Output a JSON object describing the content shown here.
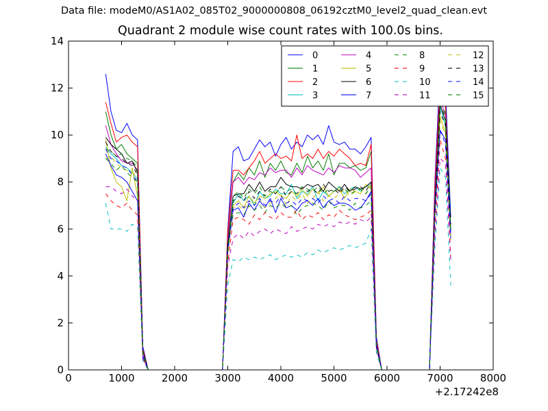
{
  "figure": {
    "suptitle": "Data file: modeM0/AS1A02_085T02_9000000808_06192cztM0_level2_quad_clean.evt",
    "offset_label": "+2.17242e8"
  },
  "chart_data": {
    "type": "line",
    "title": "Quadrant 2 module wise count rates with 100.0s bins.",
    "xlabel": "",
    "ylabel": "",
    "x_offset": 217242000,
    "xlim": [
      0,
      8000
    ],
    "ylim": [
      0,
      14
    ],
    "xticks": [
      0,
      1000,
      2000,
      3000,
      4000,
      5000,
      6000,
      7000,
      8000
    ],
    "yticks": [
      0,
      2,
      4,
      6,
      8,
      10,
      12,
      14
    ],
    "grid": false,
    "legend_placement": "top-right",
    "legend_columns": 4,
    "x": [
      700,
      800,
      900,
      1000,
      1100,
      1200,
      1300,
      1400,
      1500,
      1600,
      1700,
      1800,
      1900,
      2000,
      2100,
      2200,
      2300,
      2400,
      2500,
      2600,
      2700,
      2800,
      2900,
      3000,
      3100,
      3200,
      3300,
      3400,
      3500,
      3600,
      3700,
      3800,
      3900,
      4000,
      4100,
      4200,
      4300,
      4400,
      4500,
      4600,
      4700,
      4800,
      4900,
      5000,
      5100,
      5200,
      5300,
      5400,
      5500,
      5600,
      5700,
      5800,
      5900,
      6000,
      6100,
      6200,
      6300,
      6400,
      6500,
      6600,
      6700,
      6800,
      6900,
      7000,
      7100,
      7200
    ],
    "series": [
      {
        "name": "0",
        "color": "#0000ff",
        "style": "solid",
        "values": [
          12.6,
          11.0,
          10.2,
          10.1,
          10.5,
          10.0,
          9.8,
          1.0,
          0,
          0,
          0,
          0,
          0,
          0,
          0,
          0,
          0,
          0,
          0,
          0,
          0,
          0,
          0,
          6.0,
          9.3,
          9.5,
          8.9,
          9.0,
          9.4,
          9.8,
          9.5,
          9.7,
          9.1,
          9.6,
          9.9,
          9.4,
          9.7,
          9.5,
          10.0,
          9.8,
          10.0,
          9.6,
          10.4,
          9.7,
          9.6,
          9.7,
          9.4,
          9.4,
          9.2,
          9.5,
          9.9,
          1.4,
          0,
          0,
          0,
          0,
          0,
          0,
          0,
          0,
          0,
          0,
          8.0,
          12.9,
          12.0,
          6.5
        ]
      },
      {
        "name": "1",
        "color": "#008000",
        "style": "solid",
        "values": [
          11.0,
          10.0,
          9.4,
          9.6,
          9.2,
          9.0,
          8.8,
          0.8,
          0,
          0,
          0,
          0,
          0,
          0,
          0,
          0,
          0,
          0,
          0,
          0,
          0,
          0,
          0,
          5.6,
          8.0,
          8.4,
          8.1,
          8.6,
          8.3,
          8.9,
          8.2,
          8.8,
          8.5,
          8.9,
          8.4,
          8.3,
          8.8,
          8.4,
          9.1,
          8.6,
          8.9,
          8.5,
          9.2,
          8.3,
          8.8,
          8.8,
          8.6,
          8.7,
          8.5,
          8.6,
          9.3,
          1.2,
          0,
          0,
          0,
          0,
          0,
          0,
          0,
          0,
          0,
          0,
          7.5,
          11.7,
          11.3,
          6.0
        ]
      },
      {
        "name": "2",
        "color": "#ff0000",
        "style": "solid",
        "values": [
          11.4,
          10.5,
          9.7,
          9.9,
          10.0,
          9.7,
          9.5,
          0.9,
          0,
          0,
          0,
          0,
          0,
          0,
          0,
          0,
          0,
          0,
          0,
          0,
          0,
          0,
          0,
          5.9,
          8.5,
          8.5,
          8.3,
          8.6,
          8.9,
          9.3,
          8.8,
          9.0,
          9.2,
          9.0,
          9.1,
          8.9,
          10.0,
          9.0,
          9.2,
          9.0,
          9.4,
          9.0,
          9.3,
          9.1,
          9.4,
          9.2,
          9.0,
          8.7,
          8.8,
          8.7,
          9.6,
          1.3,
          0,
          0,
          0,
          0,
          0,
          0,
          0,
          0,
          0,
          0,
          7.8,
          12.2,
          11.4,
          5.8
        ]
      },
      {
        "name": "3",
        "color": "#00bfbf",
        "style": "solid",
        "values": [
          9.5,
          9.2,
          9.0,
          8.7,
          8.6,
          8.4,
          8.1,
          0.6,
          0,
          0,
          0,
          0,
          0,
          0,
          0,
          0,
          0,
          0,
          0,
          0,
          0,
          0,
          0,
          5.0,
          7.1,
          7.5,
          7.2,
          7.4,
          7.0,
          7.6,
          7.3,
          7.4,
          7.7,
          7.5,
          7.5,
          7.9,
          7.3,
          7.6,
          7.5,
          7.8,
          7.2,
          7.6,
          7.4,
          7.6,
          7.8,
          7.5,
          7.7,
          7.8,
          7.6,
          7.8,
          7.9,
          1.1,
          0,
          0,
          0,
          0,
          0,
          0,
          0,
          0,
          0,
          0,
          6.8,
          11.2,
          10.4,
          5.9
        ]
      },
      {
        "name": "4",
        "color": "#bf00bf",
        "style": "solid",
        "values": [
          10.4,
          9.6,
          9.2,
          8.9,
          8.8,
          8.8,
          8.5,
          0.8,
          0,
          0,
          0,
          0,
          0,
          0,
          0,
          0,
          0,
          0,
          0,
          0,
          0,
          0,
          0,
          5.5,
          8.0,
          8.2,
          7.9,
          8.2,
          8.1,
          8.4,
          8.3,
          8.6,
          8.4,
          8.5,
          8.5,
          8.2,
          8.6,
          8.3,
          8.7,
          8.5,
          8.4,
          8.3,
          8.6,
          8.4,
          8.7,
          8.6,
          8.6,
          8.5,
          8.2,
          8.4,
          8.6,
          1.2,
          0,
          0,
          0,
          0,
          0,
          0,
          0,
          0,
          0,
          0,
          7.4,
          11.6,
          10.8,
          5.7
        ]
      },
      {
        "name": "5",
        "color": "#bfbf00",
        "style": "solid",
        "values": [
          9.8,
          8.6,
          8.0,
          7.8,
          7.2,
          8.6,
          7.4,
          0.6,
          0,
          0,
          0,
          0,
          0,
          0,
          0,
          0,
          0,
          0,
          0,
          0,
          0,
          0,
          0,
          4.9,
          7.0,
          7.2,
          6.9,
          7.4,
          7.1,
          7.4,
          7.3,
          7.5,
          7.6,
          7.4,
          7.3,
          7.6,
          7.4,
          7.7,
          7.4,
          7.7,
          7.5,
          7.8,
          7.4,
          7.6,
          7.7,
          7.3,
          7.7,
          7.6,
          7.5,
          7.9,
          7.7,
          1.0,
          0,
          0,
          0,
          0,
          0,
          0,
          0,
          0,
          0,
          0,
          6.5,
          10.8,
          10.1,
          5.5
        ]
      },
      {
        "name": "6",
        "color": "#000000",
        "style": "solid",
        "values": [
          9.9,
          9.6,
          9.4,
          9.2,
          8.8,
          8.9,
          8.4,
          0.8,
          0,
          0,
          0,
          0,
          0,
          0,
          0,
          0,
          0,
          0,
          0,
          0,
          0,
          0,
          0,
          5.3,
          7.4,
          7.5,
          7.5,
          7.9,
          7.6,
          8.0,
          7.6,
          7.8,
          7.8,
          8.2,
          7.9,
          7.8,
          7.8,
          7.7,
          7.9,
          7.8,
          7.9,
          7.6,
          8.0,
          7.8,
          7.6,
          7.9,
          7.6,
          7.8,
          7.7,
          7.8,
          8.0,
          1.1,
          0,
          0,
          0,
          0,
          0,
          0,
          0,
          0,
          0,
          0,
          7.0,
          11.3,
          10.6,
          6.0
        ]
      },
      {
        "name": "7",
        "color": "#0000ff",
        "style": "solid",
        "values": [
          9.2,
          8.7,
          8.3,
          8.2,
          8.0,
          7.6,
          7.2,
          0.6,
          0,
          0,
          0,
          0,
          0,
          0,
          0,
          0,
          0,
          0,
          0,
          0,
          0,
          0,
          0,
          5.0,
          6.8,
          6.9,
          6.5,
          7.1,
          6.8,
          7.2,
          6.9,
          7.3,
          6.7,
          7.3,
          6.9,
          7.0,
          6.8,
          7.1,
          7.2,
          7.0,
          7.3,
          6.9,
          7.2,
          7.0,
          7.1,
          7.1,
          7.0,
          6.8,
          6.9,
          7.2,
          7.6,
          1.0,
          0,
          0,
          0,
          0,
          0,
          0,
          0,
          0,
          0,
          0,
          6.6,
          10.2,
          9.8,
          5.6
        ]
      },
      {
        "name": "8",
        "color": "#008000",
        "style": "dashed",
        "values": [
          9.4,
          9.3,
          9.1,
          9.2,
          9.0,
          8.9,
          8.6,
          0.8,
          0,
          0,
          0,
          0,
          0,
          0,
          0,
          0,
          0,
          0,
          0,
          0,
          0,
          0,
          0,
          5.4,
          6.6,
          6.7,
          6.6,
          7.0,
          6.8,
          7.0,
          6.7,
          7.0,
          6.9,
          7.1,
          6.9,
          7.0,
          6.6,
          6.9,
          7.0,
          7.1,
          7.0,
          6.8,
          7.2,
          6.9,
          7.0,
          7.0,
          6.8,
          7.1,
          6.9,
          7.0,
          7.2,
          1.1,
          0,
          0,
          0,
          0,
          0,
          0,
          0,
          0,
          0,
          0,
          6.9,
          11.6,
          10.9,
          5.9
        ]
      },
      {
        "name": "9",
        "color": "#ff0000",
        "style": "dashed",
        "values": [
          7.5,
          7.2,
          7.0,
          6.9,
          7.1,
          6.8,
          6.6,
          0.5,
          0,
          0,
          0,
          0,
          0,
          0,
          0,
          0,
          0,
          0,
          0,
          0,
          0,
          0,
          0,
          4.5,
          6.4,
          6.5,
          6.4,
          6.2,
          6.6,
          6.4,
          6.7,
          6.5,
          6.4,
          6.7,
          6.5,
          6.5,
          6.8,
          6.4,
          6.6,
          6.5,
          6.7,
          6.4,
          6.6,
          6.5,
          6.8,
          6.6,
          6.5,
          6.4,
          6.5,
          6.6,
          6.8,
          0.9,
          0,
          0,
          0,
          0,
          0,
          0,
          0,
          0,
          0,
          0,
          6.0,
          9.8,
          9.0,
          4.8
        ]
      },
      {
        "name": "10",
        "color": "#00bfbf",
        "style": "dashed",
        "values": [
          7.1,
          6.0,
          6.0,
          6.0,
          5.9,
          6.2,
          6.1,
          0.4,
          0,
          0,
          0,
          0,
          0,
          0,
          0,
          0,
          0,
          0,
          0,
          0,
          0,
          0,
          0,
          3.6,
          4.7,
          4.6,
          4.8,
          4.7,
          4.8,
          4.7,
          4.8,
          4.9,
          4.7,
          4.8,
          4.9,
          4.8,
          4.9,
          4.8,
          5.0,
          4.9,
          5.1,
          5.0,
          5.1,
          5.2,
          5.1,
          5.2,
          5.3,
          5.2,
          5.3,
          5.4,
          6.0,
          0.7,
          0,
          0,
          0,
          0,
          0,
          0,
          0,
          0,
          0,
          0,
          5.2,
          8.6,
          8.2,
          3.6
        ]
      },
      {
        "name": "11",
        "color": "#bf00bf",
        "style": "dashed",
        "values": [
          7.8,
          7.8,
          7.6,
          7.5,
          7.7,
          7.4,
          7.2,
          0.5,
          0,
          0,
          0,
          0,
          0,
          0,
          0,
          0,
          0,
          0,
          0,
          0,
          0,
          0,
          0,
          4.4,
          5.6,
          5.8,
          5.6,
          5.9,
          5.7,
          5.9,
          6.0,
          5.8,
          6.0,
          5.9,
          5.8,
          6.1,
          5.9,
          6.0,
          6.1,
          6.0,
          6.2,
          6.1,
          6.2,
          6.1,
          6.3,
          6.2,
          6.3,
          6.2,
          6.4,
          6.3,
          6.5,
          0.9,
          0,
          0,
          0,
          0,
          0,
          0,
          0,
          0,
          0,
          0,
          5.6,
          9.0,
          8.8,
          4.7
        ]
      },
      {
        "name": "12",
        "color": "#bfbf00",
        "style": "dashed",
        "values": [
          9.0,
          9.1,
          8.8,
          8.6,
          8.5,
          8.4,
          8.2,
          0.7,
          0,
          0,
          0,
          0,
          0,
          0,
          0,
          0,
          0,
          0,
          0,
          0,
          0,
          0,
          0,
          5.0,
          6.9,
          7.0,
          6.8,
          7.2,
          7.0,
          7.3,
          6.9,
          7.1,
          7.3,
          7.5,
          7.0,
          7.4,
          7.2,
          7.5,
          7.1,
          7.3,
          7.6,
          7.2,
          7.4,
          7.3,
          7.5,
          7.7,
          7.4,
          7.6,
          7.7,
          7.5,
          7.9,
          1.0,
          0,
          0,
          0,
          0,
          0,
          0,
          0,
          0,
          0,
          0,
          6.5,
          10.6,
          10.0,
          5.7
        ]
      },
      {
        "name": "13",
        "color": "#000000",
        "style": "dashed",
        "values": [
          9.7,
          9.3,
          9.1,
          9.0,
          8.8,
          8.7,
          8.3,
          0.7,
          0,
          0,
          0,
          0,
          0,
          0,
          0,
          0,
          0,
          0,
          0,
          0,
          0,
          0,
          0,
          5.2,
          7.2,
          7.4,
          7.2,
          7.6,
          7.3,
          7.6,
          7.4,
          7.7,
          7.5,
          7.8,
          7.4,
          7.6,
          7.5,
          7.8,
          7.6,
          7.7,
          7.5,
          7.9,
          7.6,
          7.7,
          7.5,
          7.8,
          7.6,
          7.7,
          7.8,
          7.6,
          8.0,
          1.0,
          0,
          0,
          0,
          0,
          0,
          0,
          0,
          0,
          0,
          0,
          6.9,
          11.0,
          10.4,
          6.2
        ]
      },
      {
        "name": "14",
        "color": "#0000ff",
        "style": "dashed",
        "values": [
          9.4,
          9.0,
          8.9,
          8.7,
          8.6,
          8.3,
          8.0,
          0.7,
          0,
          0,
          0,
          0,
          0,
          0,
          0,
          0,
          0,
          0,
          0,
          0,
          0,
          0,
          0,
          5.1,
          6.9,
          7.1,
          6.9,
          7.2,
          7.0,
          7.3,
          7.0,
          7.2,
          7.1,
          7.4,
          7.1,
          7.2,
          7.0,
          7.3,
          7.2,
          7.3,
          7.1,
          7.4,
          7.2,
          7.3,
          7.1,
          7.4,
          7.2,
          7.3,
          7.3,
          7.2,
          7.5,
          1.0,
          0,
          0,
          0,
          0,
          0,
          0,
          0,
          0,
          0,
          0,
          6.7,
          10.2,
          9.6,
          5.8
        ]
      },
      {
        "name": "15",
        "color": "#008000",
        "style": "dashed",
        "values": [
          9.0,
          8.8,
          8.5,
          8.7,
          8.4,
          8.2,
          8.0,
          0.7,
          0,
          0,
          0,
          0,
          0,
          0,
          0,
          0,
          0,
          0,
          0,
          0,
          0,
          0,
          0,
          5.0,
          7.4,
          7.6,
          7.3,
          7.7,
          7.5,
          7.8,
          7.4,
          7.6,
          7.5,
          7.8,
          7.6,
          7.7,
          7.5,
          7.8,
          7.7,
          7.6,
          7.8,
          7.5,
          7.7,
          7.6,
          7.8,
          7.7,
          7.5,
          7.6,
          7.7,
          7.5,
          7.8,
          1.0,
          0,
          0,
          0,
          0,
          0,
          0,
          0,
          0,
          0,
          0,
          6.8,
          11.4,
          10.7,
          6.0
        ]
      }
    ]
  }
}
